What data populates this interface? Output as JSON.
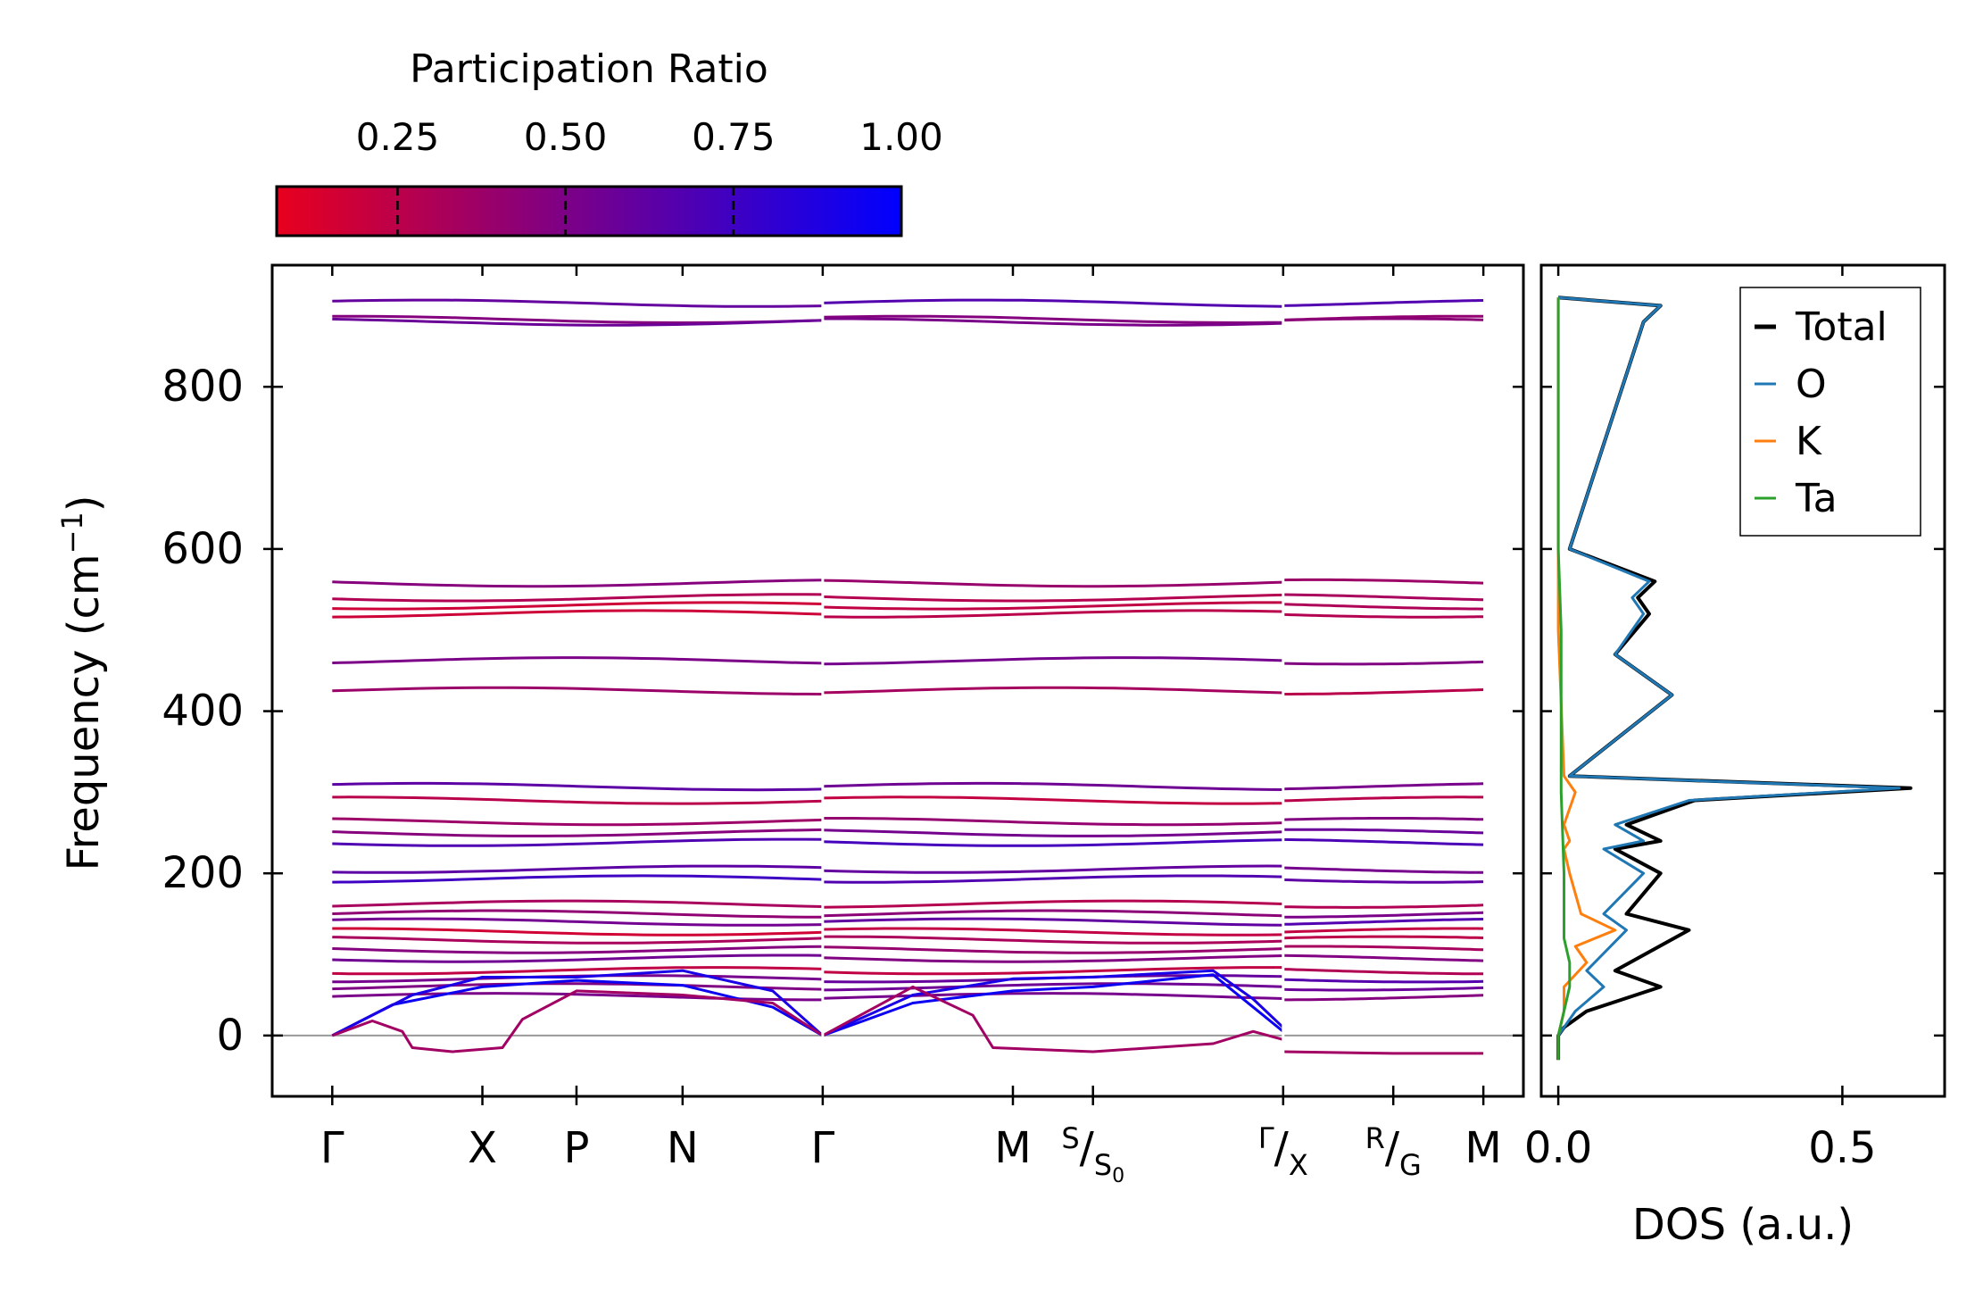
{
  "colors": {
    "cmap_low": "#e8001e",
    "cmap_high": "#0000ff",
    "total": "#000000",
    "O": "#1f77b4",
    "K": "#ff7f0e",
    "Ta": "#2ca02c",
    "zero_line": "#999999"
  },
  "colorbar": {
    "title": "Participation Ratio",
    "range": [
      0.07,
      1.0
    ],
    "ticks": [
      "0.25",
      "0.50",
      "0.75",
      "1.00"
    ],
    "tick_values": [
      0.25,
      0.5,
      0.75,
      1.0
    ]
  },
  "chart_data": [
    {
      "type": "line",
      "title": "",
      "ylabel_main": "Frequency (cm",
      "ylabel_sup": "−1",
      "ylabel_end": ")",
      "ylim": [
        -75,
        950
      ],
      "yticks": [
        0,
        200,
        400,
        600,
        800
      ],
      "ytick_labels": [
        "0",
        "200",
        "400",
        "600",
        "800"
      ],
      "xlim": [
        -0.3,
        5.95
      ],
      "path_labels": [
        {
          "pos": 0,
          "main": "Γ"
        },
        {
          "pos": 0.75,
          "main": "X"
        },
        {
          "pos": 1.22,
          "main": "P"
        },
        {
          "pos": 1.75,
          "main": "N"
        },
        {
          "pos": 2.45,
          "main": "Γ"
        },
        {
          "pos": 3.4,
          "main": "M"
        },
        {
          "pos": 3.8,
          "sup": "S",
          "sub": "S",
          "subsub": "0"
        },
        {
          "pos": 4.75,
          "sup": "Γ",
          "sub": "X"
        },
        {
          "pos": 5.3,
          "sup": "R",
          "sub": "G"
        },
        {
          "pos": 5.75,
          "main": "M"
        }
      ],
      "segments": [
        [
          0,
          2.45
        ],
        [
          2.45,
          4.75
        ],
        [
          4.75,
          5.75
        ]
      ],
      "bands_flat": [
        {
          "f": 903,
          "pr": 0.6
        },
        {
          "f": 883,
          "pr": 0.4
        },
        {
          "f": 880,
          "pr": 0.5
        },
        {
          "f": 558,
          "pr": 0.45
        },
        {
          "f": 540,
          "pr": 0.35
        },
        {
          "f": 530,
          "pr": 0.25
        },
        {
          "f": 520,
          "pr": 0.2
        },
        {
          "f": 462,
          "pr": 0.45
        },
        {
          "f": 425,
          "pr": 0.3
        },
        {
          "f": 307,
          "pr": 0.6
        },
        {
          "f": 290,
          "pr": 0.3
        },
        {
          "f": 264,
          "pr": 0.45
        },
        {
          "f": 250,
          "pr": 0.5
        },
        {
          "f": 238,
          "pr": 0.65
        },
        {
          "f": 205,
          "pr": 0.55
        },
        {
          "f": 193,
          "pr": 0.7
        },
        {
          "f": 162,
          "pr": 0.35
        },
        {
          "f": 150,
          "pr": 0.5
        },
        {
          "f": 140,
          "pr": 0.6
        },
        {
          "f": 128,
          "pr": 0.15
        },
        {
          "f": 118,
          "pr": 0.25
        },
        {
          "f": 106,
          "pr": 0.4
        },
        {
          "f": 95,
          "pr": 0.55
        },
        {
          "f": 80,
          "pr": 0.3
        },
        {
          "f": 70,
          "pr": 0.6
        },
        {
          "f": 60,
          "pr": 0.5
        },
        {
          "f": 48,
          "pr": 0.45
        }
      ],
      "bands_acoustic": [
        {
          "pr": 0.95,
          "points": [
            [
              0,
              0
            ],
            [
              0.3,
              38
            ],
            [
              0.75,
              60
            ],
            [
              1.22,
              68
            ],
            [
              1.75,
              62
            ],
            [
              2.2,
              35
            ],
            [
              2.45,
              0
            ]
          ]
        },
        {
          "pr": 0.9,
          "points": [
            [
              0,
              0
            ],
            [
              0.4,
              50
            ],
            [
              0.75,
              72
            ],
            [
              1.22,
              72
            ],
            [
              1.75,
              80
            ],
            [
              2.2,
              55
            ],
            [
              2.45,
              0
            ]
          ]
        },
        {
          "pr": 0.35,
          "points": [
            [
              0,
              0
            ],
            [
              0.2,
              18
            ],
            [
              0.35,
              5
            ],
            [
              0.4,
              -15
            ],
            [
              0.6,
              -20
            ],
            [
              0.85,
              -15
            ],
            [
              0.95,
              20
            ],
            [
              1.22,
              55
            ],
            [
              1.75,
              50
            ],
            [
              2.2,
              40
            ],
            [
              2.45,
              0
            ]
          ]
        },
        {
          "pr": 0.95,
          "points": [
            [
              2.45,
              0
            ],
            [
              2.9,
              40
            ],
            [
              3.4,
              55
            ],
            [
              3.8,
              60
            ],
            [
              4.4,
              75
            ],
            [
              4.6,
              35
            ],
            [
              4.75,
              5
            ]
          ]
        },
        {
          "pr": 0.9,
          "points": [
            [
              2.45,
              0
            ],
            [
              2.9,
              50
            ],
            [
              3.4,
              70
            ],
            [
              3.8,
              72
            ],
            [
              4.4,
              80
            ],
            [
              4.6,
              45
            ],
            [
              4.75,
              10
            ]
          ]
        },
        {
          "pr": 0.35,
          "points": [
            [
              2.45,
              0
            ],
            [
              2.9,
              60
            ],
            [
              3.2,
              25
            ],
            [
              3.3,
              -15
            ],
            [
              3.8,
              -20
            ],
            [
              4.4,
              -10
            ],
            [
              4.6,
              5
            ],
            [
              4.75,
              -5
            ]
          ]
        },
        {
          "pr": 0.35,
          "points": [
            [
              4.75,
              -20
            ],
            [
              5.3,
              -22
            ],
            [
              5.75,
              -22
            ]
          ]
        }
      ],
      "series": [
        {
          "name": "Total",
          "values_x": [
            0.0,
            0.0,
            0.01,
            0.05,
            0.18,
            0.1,
            0.23,
            0.12,
            0.18,
            0.1,
            0.18,
            0.12,
            0.24,
            0.62,
            0.02,
            0.2,
            0.1,
            0.16,
            0.14,
            0.17,
            0.02,
            0.15,
            0.18,
            0.0
          ],
          "values_y": [
            -30,
            0,
            10,
            30,
            60,
            80,
            130,
            150,
            200,
            230,
            240,
            260,
            290,
            305,
            320,
            420,
            470,
            520,
            540,
            560,
            600,
            880,
            900,
            910
          ]
        },
        {
          "name": "O",
          "values_x": [
            0.0,
            0.0,
            0.01,
            0.03,
            0.08,
            0.05,
            0.12,
            0.08,
            0.15,
            0.08,
            0.15,
            0.1,
            0.23,
            0.6,
            0.02,
            0.2,
            0.1,
            0.15,
            0.13,
            0.16,
            0.02,
            0.15,
            0.18,
            0.0
          ],
          "values_y": [
            -30,
            0,
            10,
            30,
            60,
            80,
            130,
            150,
            200,
            230,
            240,
            260,
            290,
            305,
            320,
            420,
            470,
            520,
            540,
            560,
            600,
            880,
            900,
            910
          ]
        },
        {
          "name": "K",
          "values_x": [
            0.0,
            0.0,
            0.01,
            0.01,
            0.05,
            0.03,
            0.1,
            0.04,
            0.02,
            0.01,
            0.02,
            0.01,
            0.03,
            0.02,
            0.01,
            0.0,
            0.0,
            0.0
          ],
          "values_y": [
            -30,
            0,
            30,
            60,
            90,
            110,
            130,
            150,
            200,
            230,
            240,
            260,
            300,
            310,
            320,
            500,
            600,
            910
          ]
        },
        {
          "name": "Ta",
          "values_x": [
            0.0,
            0.0,
            0.01,
            0.02,
            0.02,
            0.01,
            0.01,
            0.005,
            0.005,
            0.0,
            0.0
          ],
          "values_y": [
            -30,
            0,
            30,
            60,
            90,
            120,
            200,
            300,
            500,
            600,
            910
          ]
        }
      ],
      "dos_xlim": [
        -0.03,
        0.68
      ],
      "dos_xticks": [
        0.0,
        0.5
      ],
      "dos_xtick_labels": [
        "0.0",
        "0.5"
      ],
      "dos_xlabel": "DOS (a.u.)",
      "legend": [
        "Total",
        "O",
        "K",
        "Ta"
      ],
      "legend_position": "top-right"
    }
  ]
}
